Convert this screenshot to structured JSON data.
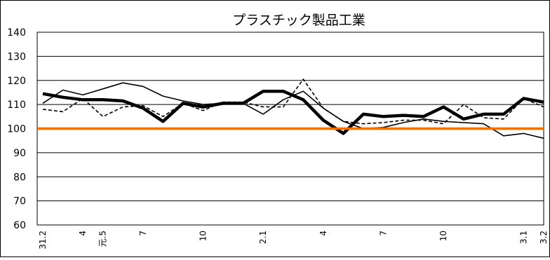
{
  "chart_data": {
    "type": "line",
    "title": "プラスチック製品工業",
    "xlabel": "",
    "ylabel": "",
    "ylim": [
      60,
      140
    ],
    "yticks": [
      60,
      70,
      80,
      90,
      100,
      110,
      120,
      130,
      140
    ],
    "grid": "horizontal",
    "legend": "none",
    "categories": [
      "31.2",
      "",
      "4",
      "元.5",
      "",
      "7",
      "",
      "",
      "10",
      "",
      "",
      "2.1",
      "",
      "",
      "4",
      "",
      "",
      "7",
      "",
      "",
      "10",
      "",
      "",
      "",
      "3.1",
      "3.2"
    ],
    "x_tick_labels": [
      {
        "index": 0,
        "label": "31.2"
      },
      {
        "index": 2,
        "label": "4"
      },
      {
        "index": 3,
        "label": "元.5"
      },
      {
        "index": 5,
        "label": "7"
      },
      {
        "index": 8,
        "label": "10"
      },
      {
        "index": 11,
        "label": "2.1"
      },
      {
        "index": 14,
        "label": "4"
      },
      {
        "index": 17,
        "label": "7"
      },
      {
        "index": 20,
        "label": "10"
      },
      {
        "index": 24,
        "label": "3.1"
      },
      {
        "index": 25,
        "label": "3.2"
      }
    ],
    "reference_line": {
      "value": 100,
      "color": "#f07000"
    },
    "series": [
      {
        "style": "thin-solid",
        "color": "#000000",
        "values": [
          110.5,
          116,
          114,
          116.5,
          119,
          117.5,
          113.5,
          111.5,
          110,
          110.5,
          110.5,
          106,
          112,
          115.5,
          108.5,
          103,
          100,
          100.5,
          102.5,
          104,
          103,
          102.5,
          102,
          97,
          98,
          96
        ]
      },
      {
        "style": "dashed",
        "color": "#000000",
        "values": [
          108,
          107,
          112.5,
          105,
          109,
          109.5,
          105,
          110.5,
          107.5,
          111,
          111,
          109,
          109,
          120.5,
          108.5,
          103,
          102,
          102.5,
          103.5,
          103.5,
          102,
          110,
          104.5,
          104,
          112.5,
          109
        ]
      },
      {
        "style": "thick-solid",
        "color": "#000000",
        "values": [
          114.5,
          113,
          112,
          112,
          111.5,
          108.5,
          103,
          110.5,
          109,
          110.5,
          110.5,
          115.5,
          115.5,
          112,
          103.5,
          98,
          106,
          105,
          105.5,
          105,
          109,
          104,
          106,
          106,
          112.5,
          111
        ]
      }
    ]
  }
}
